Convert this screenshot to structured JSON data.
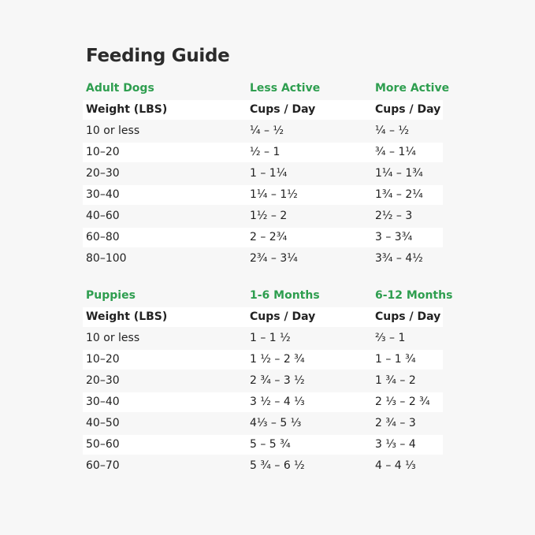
{
  "header": {
    "title": "Feeding Guide"
  },
  "tables": [
    {
      "heading": [
        "Adult Dogs",
        "Less Active",
        "More Active"
      ],
      "columns": [
        "Weight (LBS)",
        "Cups / Day",
        "Cups / Day"
      ],
      "rows": [
        [
          "10 or less",
          "¼ – ½",
          "¼ – ½"
        ],
        [
          "10–20",
          "½ – 1",
          "¾ – 1¼"
        ],
        [
          "20–30",
          "1 – 1¼",
          "1¼ – 1¾"
        ],
        [
          "30–40",
          "1¼ – 1½",
          "1¾ – 2¼"
        ],
        [
          "40–60",
          "1½ – 2",
          "2½ – 3"
        ],
        [
          "60–80",
          "2 – 2¾",
          "3 – 3¾"
        ],
        [
          "80–100",
          "2¾ – 3¼",
          "3¾ – 4½"
        ]
      ]
    },
    {
      "heading": [
        "Puppies",
        "1-6 Months",
        "6-12 Months"
      ],
      "columns": [
        "Weight (LBS)",
        "Cups / Day",
        "Cups / Day"
      ],
      "rows": [
        [
          "10 or less",
          "1 – 1 ½",
          "⅔ – 1"
        ],
        [
          "10–20",
          "1 ½ – 2 ¾",
          "1 – 1 ¾"
        ],
        [
          "20–30",
          "2 ¾ – 3 ½",
          "1 ¾ – 2"
        ],
        [
          "30–40",
          "3 ½ – 4 ⅓",
          "2 ⅓ – 2 ¾"
        ],
        [
          "40–50",
          "4⅓ – 5 ⅓",
          "2 ¾ – 3"
        ],
        [
          "50–60",
          "5 – 5 ¾",
          "3 ⅓ – 4"
        ],
        [
          "60–70",
          "5 ¾ – 6 ½",
          "4 – 4 ⅓"
        ]
      ]
    }
  ]
}
